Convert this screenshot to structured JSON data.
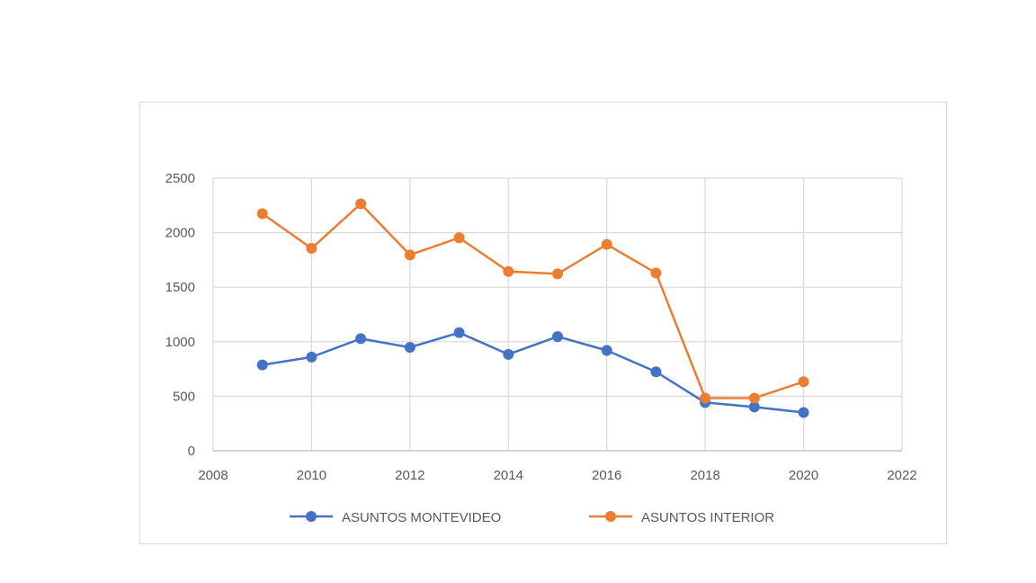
{
  "chart_data": {
    "type": "line",
    "title": "",
    "xlabel": "",
    "ylabel": "",
    "xlim": [
      2008,
      2022
    ],
    "ylim": [
      0,
      2500
    ],
    "xticks": [
      "2008",
      "2010",
      "2012",
      "2014",
      "2016",
      "2018",
      "2020",
      "2022"
    ],
    "yticks": [
      "0",
      "500",
      "1000",
      "1500",
      "2000",
      "2500"
    ],
    "grid": true,
    "legend_position": "bottom",
    "x": [
      2009,
      2010,
      2011,
      2012,
      2013,
      2014,
      2015,
      2016,
      2017,
      2018,
      2019,
      2020
    ],
    "series": [
      {
        "name": "ASUNTOS MONTEVIDEO",
        "color": "#4472c4",
        "values": [
          787,
          859,
          1028,
          948,
          1083,
          884,
          1047,
          920,
          724,
          442,
          401,
          351
        ]
      },
      {
        "name": "ASUNTOS INTERIOR",
        "color": "#ed7d31",
        "values": [
          2174,
          1856,
          2265,
          1796,
          1953,
          1644,
          1622,
          1892,
          1630,
          483,
          483,
          633
        ]
      }
    ]
  }
}
